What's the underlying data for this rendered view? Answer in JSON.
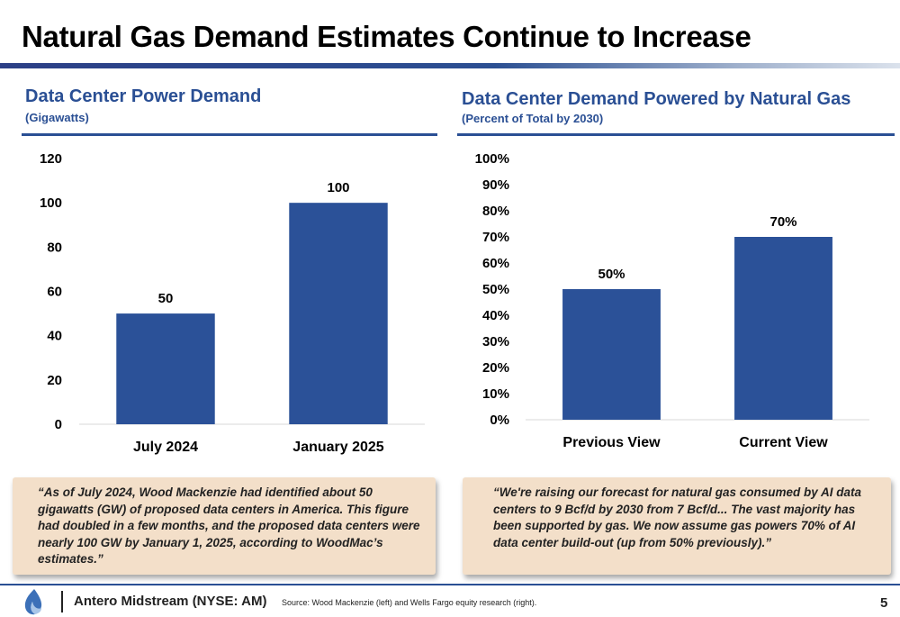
{
  "page": {
    "title": "Natural Gas Demand Estimates Continue to Increase",
    "accent_color": "#2a4f94",
    "bar_color": "#2b5198"
  },
  "left_panel": {
    "title": "Data Center Power Demand",
    "subtitle": "(Gigawatts)",
    "quote": "“As of July 2024, Wood Mackenzie had identified about 50 gigawatts (GW) of proposed data centers in America. This figure had doubled in a few months, and the proposed data centers were nearly 100 GW by January 1, 2025, according to WoodMac’s estimates.”"
  },
  "right_panel": {
    "title": "Data Center Demand Powered by Natural Gas",
    "subtitle": "(Percent of Total by 2030)",
    "quote": "“We're raising our forecast for natural gas consumed by AI data centers to 9 Bcf/d by 2030 from 7 Bcf/d... The vast majority has been supported by gas. We now assume gas powers 70% of AI data center build-out (up from 50% previously).”"
  },
  "chart_data": [
    {
      "type": "bar",
      "title": "Data Center Power Demand",
      "subtitle": "(Gigawatts)",
      "categories": [
        "July 2024",
        "January 2025"
      ],
      "values": [
        50,
        100
      ],
      "data_labels": [
        "50",
        "100"
      ],
      "ylim": [
        0,
        120
      ],
      "yticks": [
        "0",
        "20",
        "40",
        "60",
        "80",
        "100",
        "120"
      ],
      "grid": false
    },
    {
      "type": "bar",
      "title": "Data Center Demand Powered by Natural Gas",
      "subtitle": "(Percent of Total by 2030)",
      "categories": [
        "Previous View",
        "Current View"
      ],
      "values": [
        50,
        70
      ],
      "data_labels": [
        "50%",
        "70%"
      ],
      "ylim": [
        0,
        100
      ],
      "yticks": [
        "0%",
        "10%",
        "20%",
        "30%",
        "40%",
        "50%",
        "60%",
        "70%",
        "80%",
        "90%",
        "100%"
      ],
      "grid": false
    }
  ],
  "footer": {
    "company": "Antero Midstream (NYSE: AM)",
    "source": "Source: Wood Mackenzie (left) and Wells Fargo equity research (right).",
    "page_number": "5",
    "logo_icon": "flame-logo-icon"
  }
}
